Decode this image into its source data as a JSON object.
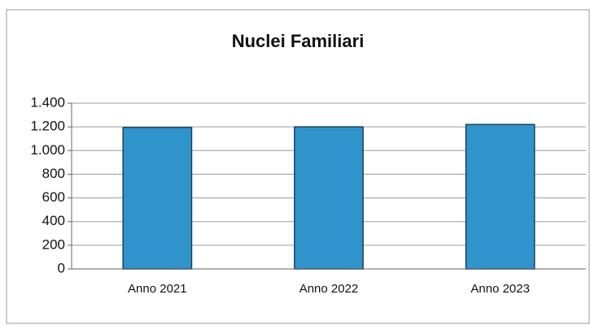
{
  "chart_data": {
    "type": "bar",
    "title": "Nuclei Familiari",
    "categories": [
      "Anno 2021",
      "Anno 2022",
      "Anno 2023"
    ],
    "values": [
      1195,
      1200,
      1220
    ],
    "color": "#2f94cc",
    "ylim": [
      0,
      1400
    ],
    "yticks": [
      0,
      200,
      400,
      600,
      800,
      {
        "value": 1000,
        "label": "1.000"
      },
      {
        "value": 1200,
        "label": "1.200"
      },
      {
        "value": 1400,
        "label": "1.400"
      }
    ],
    "grid": true
  }
}
